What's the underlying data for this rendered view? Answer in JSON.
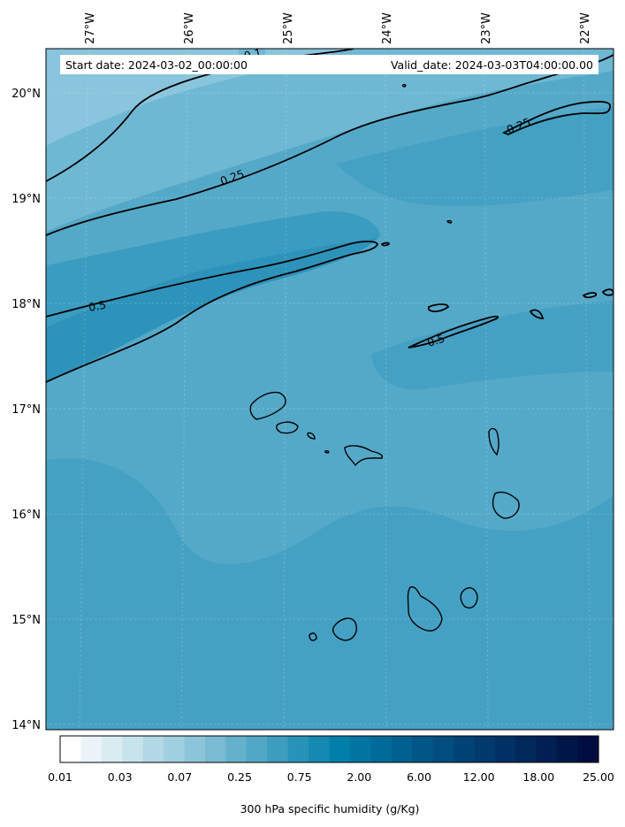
{
  "header": {
    "start_date": "Start date: 2024-03-02_00:00:00",
    "valid_date": "Valid_date: 2024-03-03T04:00:00.00"
  },
  "axes": {
    "lon_labels": [
      "27°W",
      "26°W",
      "25°W",
      "24°W",
      "23°W",
      "22°W"
    ],
    "lat_labels": [
      "20°N",
      "19°N",
      "18°N",
      "17°N",
      "16°N",
      "15°N",
      "14°N"
    ]
  },
  "contour_labels": [
    "0.1",
    "0.25",
    "0.25",
    "0.5",
    "0.5"
  ],
  "colorbar": {
    "tick_labels": [
      "0.01",
      "0.03",
      "0.07",
      "0.25",
      "0.75",
      "2.00",
      "6.00",
      "12.00",
      "18.00",
      "25.00"
    ],
    "colors": [
      "#ffffff",
      "#eaf4f8",
      "#d9ecf2",
      "#c7e3ec",
      "#b3d9e6",
      "#a0cfe0",
      "#8cc5da",
      "#78bbd3",
      "#64b1cc",
      "#50a7c6",
      "#3c9dbf",
      "#2893b8",
      "#1489b1",
      "#007faa",
      "#0075a2",
      "#006b99",
      "#006190",
      "#005787",
      "#004d7e",
      "#004375",
      "#003a6d",
      "#003164",
      "#00285b",
      "#001f52",
      "#001649",
      "#000d40"
    ],
    "label": "300 hPa specific humidity (g/Kg)"
  },
  "colors": {
    "field_base": "#55a9c8",
    "field_dark": "#45a1c4",
    "field_light": "#6fb8d3",
    "field_lighter": "#89c5dc",
    "field_core": "#2e93ba"
  }
}
